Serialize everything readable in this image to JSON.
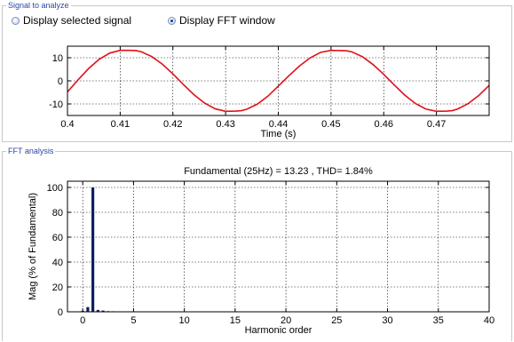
{
  "signal_group": {
    "legend": "Signal to analyze",
    "radio_selected_signal": {
      "label": "Display selected signal",
      "checked": false
    },
    "radio_fft_window": {
      "label": "Display FFT window",
      "checked": true
    }
  },
  "fft_group": {
    "legend": "FFT analysis"
  },
  "colors": {
    "signal_line": "#e0101a",
    "bars": "#0a1f5c",
    "axis": "#000000",
    "grid": "#000000"
  },
  "chart_data": [
    {
      "type": "line",
      "xlabel": "Time (s)",
      "ylabel": "",
      "xlim": [
        0.4,
        0.48
      ],
      "ylim": [
        -15,
        15
      ],
      "x_ticks": [
        0.4,
        0.41,
        0.42,
        0.43,
        0.44,
        0.45,
        0.46,
        0.47
      ],
      "x_tick_labels": [
        "0.4",
        "0.41",
        "0.42",
        "0.43",
        "0.44",
        "0.45",
        "0.46",
        "0.47"
      ],
      "y_ticks": [
        -10,
        0,
        10
      ],
      "y_tick_labels": [
        "-10",
        "0",
        "10"
      ],
      "grid": true,
      "series": [
        {
          "x": [
            0.4,
            0.402,
            0.404,
            0.406,
            0.408,
            0.41,
            0.412,
            0.413,
            0.414,
            0.416,
            0.418,
            0.42,
            0.422,
            0.424,
            0.426,
            0.428,
            0.43,
            0.432,
            0.433,
            0.434,
            0.436,
            0.438,
            0.44,
            0.442,
            0.444,
            0.446,
            0.448,
            0.45,
            0.452,
            0.453,
            0.454,
            0.456,
            0.458,
            0.46,
            0.462,
            0.464,
            0.466,
            0.468,
            0.47,
            0.472,
            0.473,
            0.474,
            0.476,
            0.478,
            0.48
          ],
          "y": [
            -4.8,
            0.4,
            5.3,
            9.3,
            12.0,
            13.2,
            13.2,
            13.1,
            12.6,
            10.5,
            7.2,
            3.0,
            -1.6,
            -6.0,
            -9.6,
            -12.1,
            -13.2,
            -13.1,
            -12.9,
            -12.3,
            -10.1,
            -6.7,
            -2.3,
            2.2,
            6.4,
            9.9,
            12.3,
            13.2,
            13.1,
            13.0,
            12.5,
            10.4,
            7.0,
            2.8,
            -1.8,
            -6.2,
            -9.8,
            -12.2,
            -13.2,
            -13.1,
            -12.9,
            -12.2,
            -9.9,
            -6.4,
            -2.0
          ]
        }
      ]
    },
    {
      "type": "bar",
      "title": "Fundamental (25Hz) = 13.23 , THD= 1.84%",
      "xlabel": "Harmonic order",
      "ylabel": "Mag (% of Fundamental)",
      "xlim": [
        -1.5,
        40
      ],
      "ylim": [
        0,
        105
      ],
      "x_ticks": [
        0,
        5,
        10,
        15,
        20,
        25,
        30,
        35,
        40
      ],
      "x_tick_labels": [
        "0",
        "5",
        "10",
        "15",
        "20",
        "25",
        "30",
        "35",
        "40"
      ],
      "y_ticks": [
        0,
        20,
        40,
        60,
        80,
        100
      ],
      "y_tick_labels": [
        "0",
        "20",
        "40",
        "60",
        "80",
        "100"
      ],
      "grid": true,
      "x": [
        0,
        0.5,
        1,
        1.5,
        2,
        2.5,
        3,
        3.5,
        4,
        4.5,
        5
      ],
      "values": [
        0.8,
        3.8,
        100,
        1.5,
        1.0,
        0.5,
        0.4,
        0.3,
        0.3,
        0.2,
        0.2
      ]
    }
  ]
}
